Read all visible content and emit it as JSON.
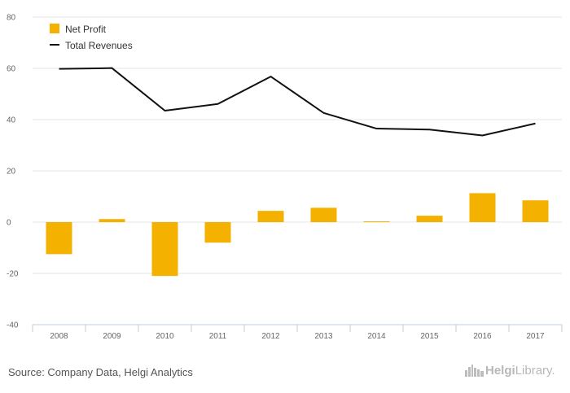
{
  "chart_data": {
    "type": "bar",
    "categories": [
      "2008",
      "2009",
      "2010",
      "2011",
      "2012",
      "2013",
      "2014",
      "2015",
      "2016",
      "2017"
    ],
    "series": [
      {
        "name": "Net Profit",
        "type": "bar",
        "color": "#f5b100",
        "values": [
          -12.5,
          1.2,
          -21.0,
          -8.0,
          4.4,
          5.6,
          0.3,
          2.5,
          11.3,
          8.5
        ]
      },
      {
        "name": "Total Revenues",
        "type": "line",
        "color": "#111111",
        "values": [
          59.8,
          60.1,
          43.5,
          46.1,
          56.8,
          42.6,
          36.5,
          36.1,
          33.8,
          38.5
        ]
      }
    ],
    "yticks": [
      80,
      60,
      40,
      20,
      0,
      -20,
      -40
    ],
    "ylim": [
      -40,
      80
    ],
    "grid": true,
    "legend_position": "top-left"
  },
  "footer": {
    "source": "Source: Company Data, Helgi Analytics",
    "brand_name": "Helgi",
    "brand_suffix": "Library."
  },
  "icons": {
    "brand": "skyline-logo-icon"
  }
}
